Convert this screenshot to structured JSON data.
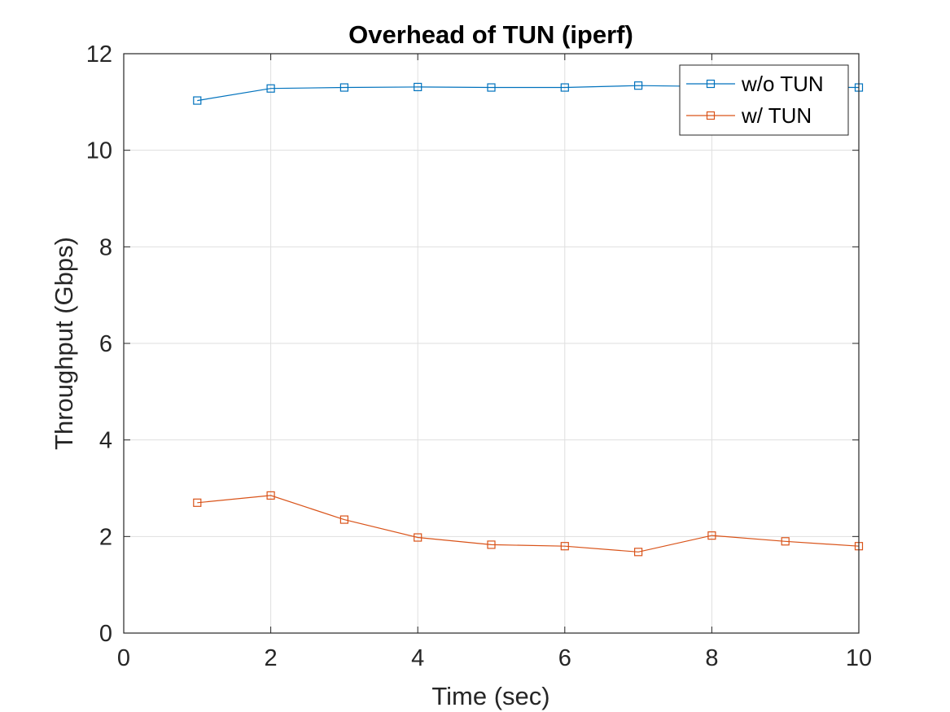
{
  "chart_data": {
    "type": "line",
    "title": "Overhead of TUN (iperf)",
    "xlabel": "Time (sec)",
    "ylabel": "Throughput (Gbps)",
    "xlim": [
      0,
      10
    ],
    "ylim": [
      0,
      12
    ],
    "xticks": [
      0,
      2,
      4,
      6,
      8,
      10
    ],
    "yticks": [
      0,
      2,
      4,
      6,
      8,
      10,
      12
    ],
    "grid": true,
    "legend_position": "top-right",
    "marker": "square",
    "x": [
      1,
      2,
      3,
      4,
      5,
      6,
      7,
      8,
      9,
      10
    ],
    "series": [
      {
        "name": "w/o TUN",
        "color": "#0072BD",
        "values": [
          11.03,
          11.28,
          11.3,
          11.31,
          11.3,
          11.3,
          11.34,
          11.32,
          11.31,
          11.3
        ]
      },
      {
        "name": "w/ TUN",
        "color": "#D95319",
        "values": [
          2.7,
          2.85,
          2.35,
          1.98,
          1.83,
          1.8,
          1.68,
          2.02,
          1.9,
          1.8
        ]
      }
    ]
  }
}
